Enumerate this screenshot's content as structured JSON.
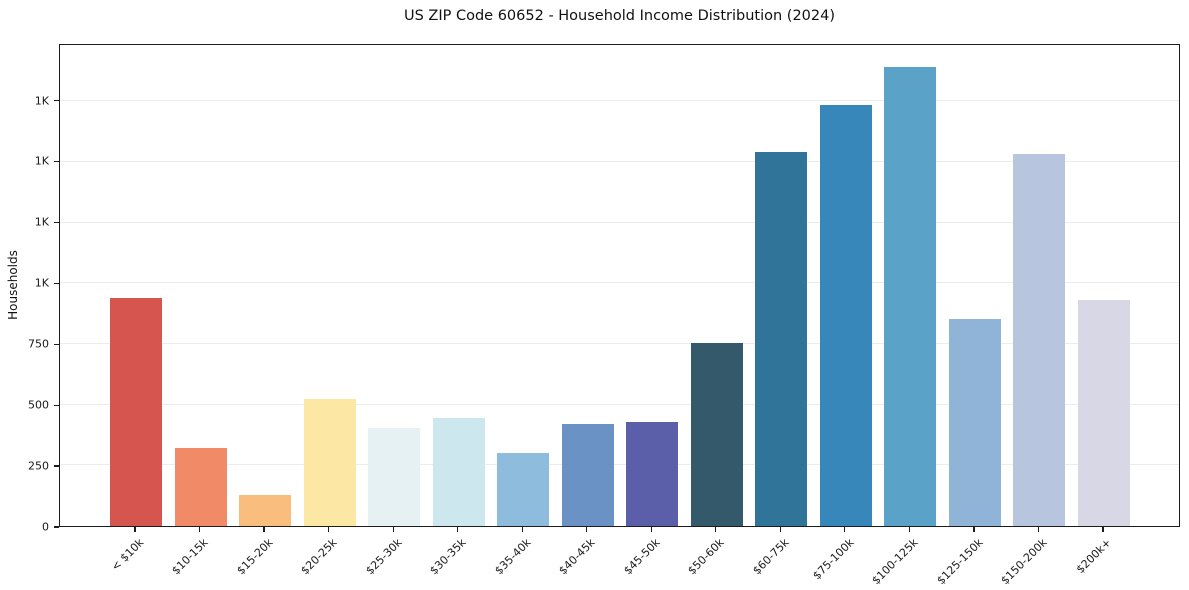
{
  "title": "US ZIP Code 60652 - Household Income Distribution (2024)",
  "chart_data": {
    "type": "bar",
    "title": "US ZIP Code 60652 - Household Income Distribution (2024)",
    "xlabel": "",
    "ylabel": "Households",
    "ylim": [
      0,
      1982
    ],
    "grid": "horizontal-light",
    "legend_position": "none",
    "categories": [
      "< $10k",
      "$10-15k",
      "$15-20k",
      "$20-25k",
      "$25-30k",
      "$30-35k",
      "$35-40k",
      "$40-45k",
      "$45-50k",
      "$50-60k",
      "$60-75k",
      "$75-100k",
      "$100-125k",
      "$125-150k",
      "$150-200k",
      "$200k+"
    ],
    "values": [
      934,
      321,
      127,
      520,
      404,
      443,
      298,
      417,
      428,
      750,
      1534,
      1727,
      1882,
      850,
      1527,
      928
    ],
    "bar_colors": [
      "#d6554e",
      "#f18b67",
      "#f9bd7d",
      "#fce8a4",
      "#e6f1f3",
      "#cde7ef",
      "#8ebcdc",
      "#6b92c4",
      "#5b5fa9",
      "#33596b",
      "#30749a",
      "#3787ba",
      "#5aa2c8",
      "#90b4d8",
      "#b8c5df",
      "#d8d7e6"
    ],
    "y_ticks": [
      {
        "value": 0,
        "label": "0"
      },
      {
        "value": 250,
        "label": "250"
      },
      {
        "value": 500,
        "label": "500"
      },
      {
        "value": 750,
        "label": "750"
      },
      {
        "value": 1000,
        "label": "1K"
      },
      {
        "value": 1250,
        "label": "1K"
      },
      {
        "value": 1500,
        "label": "1K"
      },
      {
        "value": 1750,
        "label": "1K"
      }
    ]
  }
}
